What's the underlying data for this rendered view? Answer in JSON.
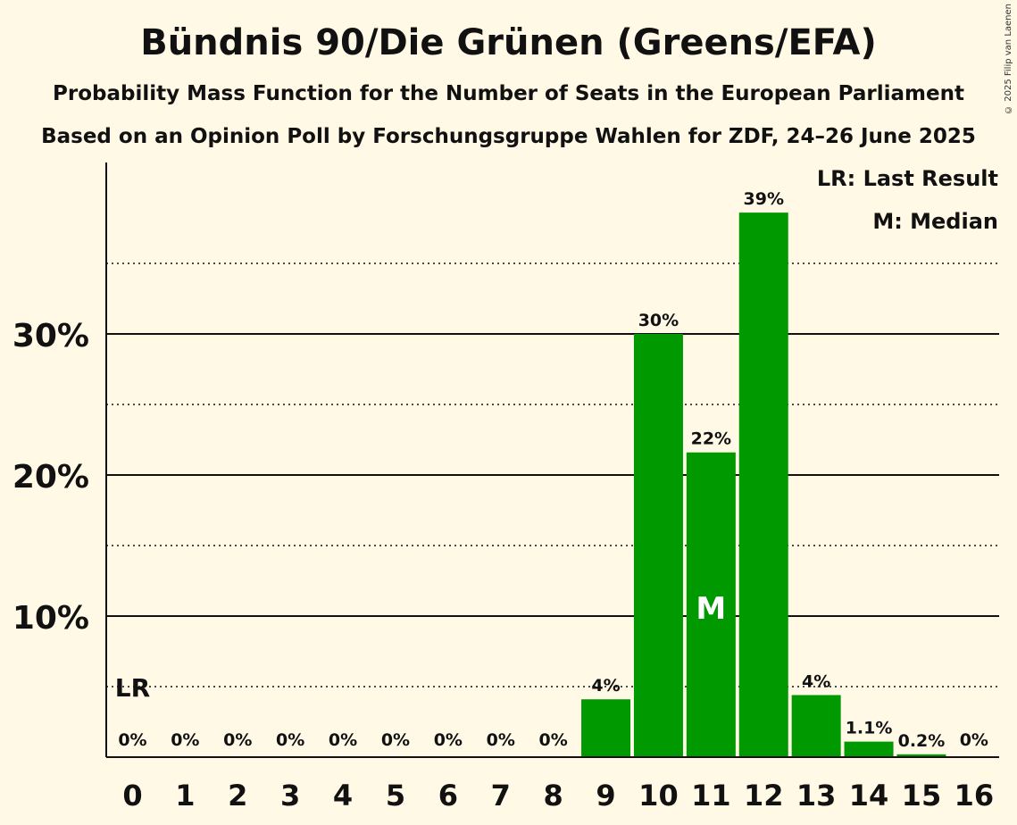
{
  "chart_data": {
    "type": "bar",
    "title": "Bündnis 90/Die Grünen (Greens/EFA)",
    "subtitle": "Probability Mass Function for the Number of Seats in the European Parliament",
    "subtitle2": "Based on an Opinion Poll by Forschungsgruppe Wahlen for ZDF, 24–26 June 2025",
    "copyright": "© 2025 Filip van Laenen",
    "categories": [
      "0",
      "1",
      "2",
      "3",
      "4",
      "5",
      "6",
      "7",
      "8",
      "9",
      "10",
      "11",
      "12",
      "13",
      "14",
      "15",
      "16"
    ],
    "values": [
      0,
      0,
      0,
      0,
      0,
      0,
      0,
      0,
      0,
      4.1,
      30.0,
      21.6,
      38.6,
      4.4,
      1.1,
      0.2,
      0
    ],
    "data_labels": [
      "0%",
      "0%",
      "0%",
      "0%",
      "0%",
      "0%",
      "0%",
      "0%",
      "0%",
      "4%",
      "30%",
      "22%",
      "39%",
      "4%",
      "1.1%",
      "0.2%",
      "0%"
    ],
    "ylim": [
      0,
      42
    ],
    "yticks": [
      10,
      20,
      30
    ],
    "ytick_labels": [
      "10%",
      "20%",
      "30%"
    ],
    "minor_gridlines": [
      5,
      15,
      25,
      35
    ],
    "xlabel": "",
    "ylabel": "",
    "bar_color": "#009900",
    "last_result_seat": 0,
    "last_result_label": "LR",
    "median_seat": 11,
    "median_label": "M",
    "legend": [
      "LR: Last Result",
      "M: Median"
    ]
  }
}
